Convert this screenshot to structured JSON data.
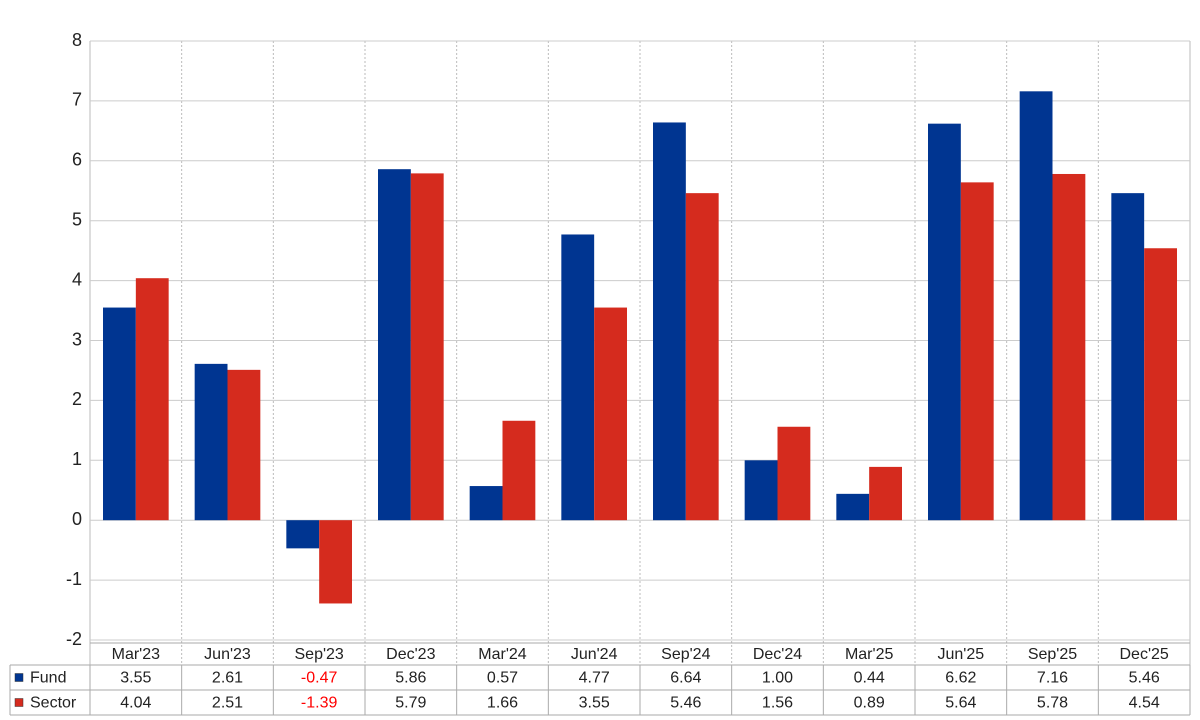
{
  "chart_data": {
    "type": "bar",
    "categories": [
      "Mar'23",
      "Jun'23",
      "Sep'23",
      "Dec'23",
      "Mar'24",
      "Jun'24",
      "Sep'24",
      "Dec'24",
      "Mar'25",
      "Jun'25",
      "Sep'25",
      "Dec'25"
    ],
    "series": [
      {
        "name": "Fund",
        "color": "#003591",
        "values": [
          3.55,
          2.61,
          -0.47,
          5.86,
          0.57,
          4.77,
          6.64,
          1,
          0.44,
          6.62,
          7.16,
          5.46
        ],
        "value_labels": [
          "3.55",
          "2.61",
          "-0.47",
          "5.86",
          "0.57",
          "4.77",
          "6.64",
          "1.00",
          "0.44",
          "6.62",
          "7.16",
          "5.46"
        ]
      },
      {
        "name": "Sector",
        "color": "#d52b1e",
        "values": [
          4.04,
          2.51,
          -1.39,
          5.79,
          1.66,
          3.55,
          5.46,
          1.56,
          0.89,
          5.64,
          5.78,
          4.54
        ],
        "value_labels": [
          "4.04",
          "2.51",
          "-1.39",
          "5.79",
          "1.66",
          "3.55",
          "5.46",
          "1.56",
          "0.89",
          "5.64",
          "5.78",
          "4.54"
        ]
      }
    ],
    "ylim": [
      -2,
      8
    ],
    "yticks": [
      -2,
      -1,
      0,
      1,
      2,
      3,
      4,
      5,
      6,
      7,
      8
    ],
    "grid": true,
    "negative_label_color": "#ff0000"
  }
}
